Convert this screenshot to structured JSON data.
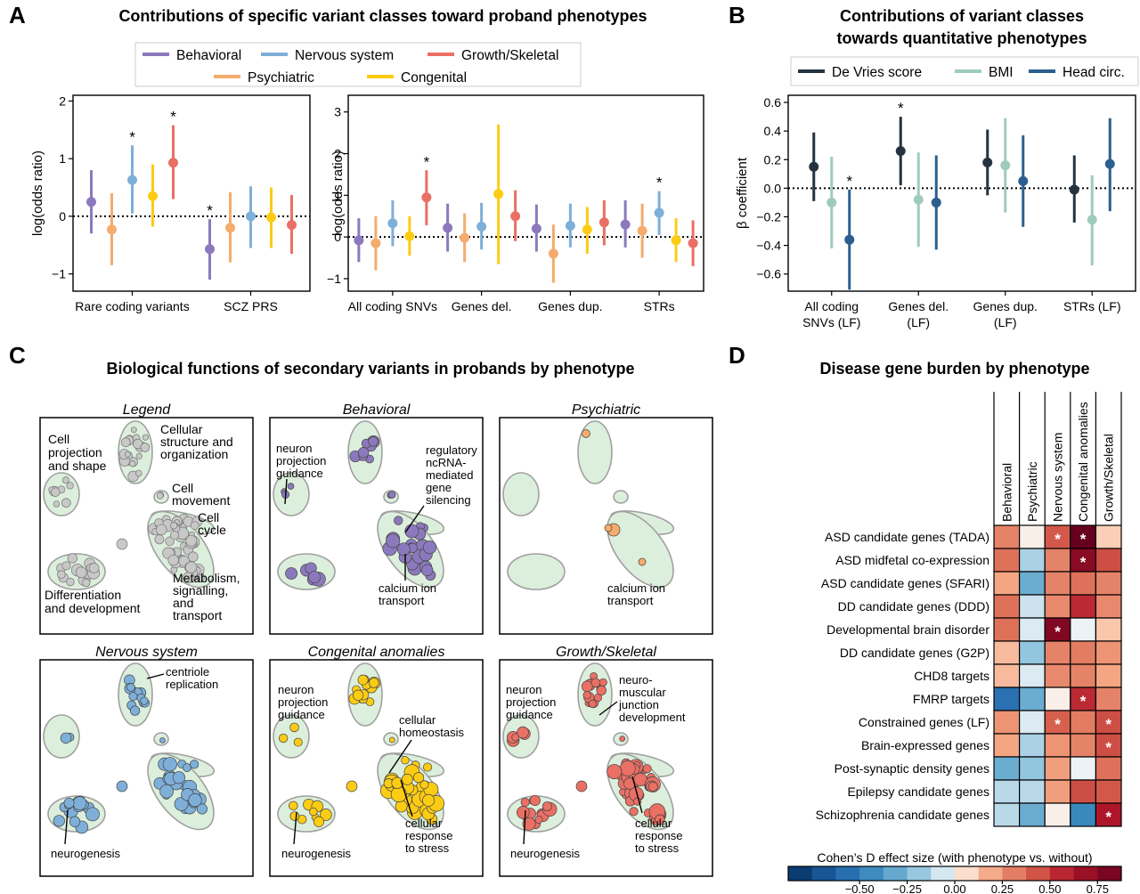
{
  "colors": {
    "behavioral": "#8c79bd",
    "nervous": "#7eafd8",
    "growth": "#ea6f64",
    "psychiatric": "#f5ac6c",
    "congenital": "#fccc14",
    "devries": "#253341",
    "bmi": "#9fcbbd",
    "headcirc": "#2c5f8f",
    "cluster_fill": "#dcefdc",
    "cluster_edge": "#a0a0a0",
    "legend_node": "#c8c8c8"
  },
  "panel_labels": [
    "A",
    "B",
    "C",
    "D"
  ],
  "panelA": {
    "title": "Contributions of specific variant classes toward proband phenotypes",
    "legend": [
      "Behavioral",
      "Nervous system",
      "Growth/Skeletal",
      "Psychiatric",
      "Congenital"
    ],
    "ylabel": "log(odds ratio)",
    "significance_mark": "*"
  },
  "panelB": {
    "title_line1": "Contributions of variant classes",
    "title_line2": "towards quantitative phenotypes",
    "legend": [
      "De Vries score",
      "BMI",
      "Head circ."
    ],
    "ylabel": "β coefficient",
    "significance_mark": "*"
  },
  "panelC": {
    "title": "Biological functions of secondary variants in probands by phenotype",
    "subpanel_titles": [
      "Legend",
      "Behavioral",
      "Psychiatric",
      "Nervous system",
      "Congenital anomalies",
      "Growth/Skeletal"
    ],
    "legend_labels": {
      "cell_projection": [
        "Cell",
        "projection",
        "and shape"
      ],
      "cellular_structure": [
        "Cellular",
        "structure and",
        "organization"
      ],
      "cell_movement": [
        "Cell",
        "movement"
      ],
      "cell_cycle": [
        "Cell",
        "cycle"
      ],
      "metabolism": [
        "Metabolism,",
        "signalling,",
        "and",
        "transport"
      ],
      "differentiation": [
        "Differentiation",
        "and development"
      ]
    },
    "annotations": {
      "neuron_projection": [
        "neuron",
        "projection",
        "guidance"
      ],
      "regulatory_ncrna": [
        "regulatory",
        "ncRNA-",
        "mediated",
        "gene",
        "silencing"
      ],
      "calcium": [
        "calcium ion",
        "transport"
      ],
      "centriole": [
        "centriole",
        "replication"
      ],
      "neurogenesis": "neurogenesis",
      "cellular_homeostasis": [
        "cellular",
        "homeostasis"
      ],
      "cellular_response": [
        "cellular",
        "response",
        "to stress"
      ],
      "neuromuscular": [
        "neuro-",
        "muscular",
        "junction",
        "development"
      ]
    }
  },
  "panelD": {
    "title": "Disease gene burden by phenotype",
    "columns": [
      "Behavioral",
      "Psychiatric",
      "Nervous system",
      "Congenital anomalies",
      "Growth/Skeletal"
    ],
    "rows": [
      "ASD candidate genes (TADA)",
      "ASD midfetal co-expression",
      "ASD candidate genes (SFARI)",
      "DD candidate genes (DDD)",
      "Developmental brain disorder",
      "DD candidate genes (G2P)",
      "CHD8 targets",
      "FMRP targets",
      "Constrained genes (LF)",
      "Brain-expressed genes",
      "Post-synaptic density genes",
      "Epilepsy candidate genes",
      "Schizophrenia candidate genes"
    ],
    "values": [
      [
        0.3,
        0.02,
        0.42,
        0.88,
        0.1
      ],
      [
        0.35,
        -0.15,
        0.3,
        0.75,
        0.45
      ],
      [
        0.2,
        -0.3,
        0.3,
        0.35,
        0.3
      ],
      [
        0.35,
        -0.08,
        0.28,
        0.55,
        0.28
      ],
      [
        0.35,
        -0.05,
        0.78,
        -0.02,
        0.12
      ],
      [
        0.15,
        -0.2,
        0.3,
        0.32,
        0.25
      ],
      [
        0.15,
        -0.05,
        0.28,
        0.3,
        0.2
      ],
      [
        -0.55,
        -0.3,
        0.02,
        0.55,
        0.3
      ],
      [
        0.25,
        -0.05,
        0.4,
        0.32,
        0.45
      ],
      [
        0.2,
        -0.15,
        0.25,
        0.3,
        0.45
      ],
      [
        -0.3,
        -0.2,
        0.22,
        -0.02,
        0.35
      ],
      [
        -0.12,
        -0.12,
        0.22,
        0.45,
        0.42
      ],
      [
        -0.12,
        -0.3,
        0.02,
        -0.45,
        0.62
      ]
    ],
    "stars": [
      [
        0,
        2
      ],
      [
        0,
        3
      ],
      [
        1,
        3
      ],
      [
        4,
        2
      ],
      [
        7,
        3
      ],
      [
        8,
        2
      ],
      [
        8,
        4
      ],
      [
        9,
        4
      ],
      [
        12,
        4
      ]
    ],
    "colorbar_label": "Cohen’s D effect size (with phenotype vs. without)",
    "colorbar_ticks": [
      "−0.50",
      "−0.25",
      "0.00",
      "0.25",
      "0.50",
      "0.75"
    ],
    "colorbar_tick_values": [
      -0.5,
      -0.25,
      0,
      0.25,
      0.5,
      0.75
    ],
    "colorbar_range": [
      -0.875,
      0.875
    ]
  },
  "chart_data": [
    {
      "type": "scatter",
      "subtype": "point-range",
      "panel": "A-left",
      "categories": [
        "Rare coding variants",
        "SCZ PRS"
      ],
      "ylabel": "log(odds ratio)",
      "ylim": [
        -1.3,
        2.1
      ],
      "yticks": [
        -1,
        0,
        1,
        2
      ],
      "reference_line": 0,
      "series": [
        {
          "name": "Behavioral",
          "values": [
            0.25,
            -0.57
          ],
          "lo": [
            -0.3,
            -1.1
          ],
          "hi": [
            0.8,
            -0.05
          ],
          "sig": [
            false,
            true
          ]
        },
        {
          "name": "Psychiatric",
          "values": [
            -0.23,
            -0.2
          ],
          "lo": [
            -0.85,
            -0.8
          ],
          "hi": [
            0.4,
            0.42
          ],
          "sig": [
            false,
            false
          ]
        },
        {
          "name": "Nervous system",
          "values": [
            0.63,
            0.0
          ],
          "lo": [
            0.05,
            -0.55
          ],
          "hi": [
            1.23,
            0.52
          ],
          "sig": [
            true,
            false
          ]
        },
        {
          "name": "Congenital",
          "values": [
            0.35,
            -0.02
          ],
          "lo": [
            -0.18,
            -0.55
          ],
          "hi": [
            0.9,
            0.5
          ],
          "sig": [
            false,
            false
          ]
        },
        {
          "name": "Growth/Skeletal",
          "values": [
            0.93,
            -0.15
          ],
          "lo": [
            0.3,
            -0.65
          ],
          "hi": [
            1.58,
            0.37
          ],
          "sig": [
            true,
            false
          ]
        }
      ]
    },
    {
      "type": "scatter",
      "subtype": "point-range",
      "panel": "A-right",
      "categories": [
        "All coding SNVs",
        "Genes del.",
        "Genes dup.",
        "STRs"
      ],
      "ylabel": "log(odds ratio)",
      "ylim": [
        -1.3,
        3.4
      ],
      "yticks": [
        -1,
        0,
        1,
        2,
        3
      ],
      "reference_line": 0,
      "series": [
        {
          "name": "Behavioral",
          "values": [
            -0.08,
            0.22,
            0.2,
            0.3
          ],
          "lo": [
            -0.6,
            -0.35,
            -0.35,
            -0.25
          ],
          "hi": [
            0.45,
            0.8,
            0.78,
            0.88
          ],
          "sig": [
            false,
            false,
            false,
            false
          ]
        },
        {
          "name": "Psychiatric",
          "values": [
            -0.15,
            -0.02,
            -0.4,
            0.15
          ],
          "lo": [
            -0.8,
            -0.6,
            -1.1,
            -0.5
          ],
          "hi": [
            0.5,
            0.57,
            0.3,
            0.8
          ],
          "sig": [
            false,
            false,
            false,
            false
          ]
        },
        {
          "name": "Nervous system",
          "values": [
            0.33,
            0.25,
            0.27,
            0.58
          ],
          "lo": [
            -0.22,
            -0.3,
            -0.25,
            0.05
          ],
          "hi": [
            0.88,
            0.82,
            0.8,
            1.1
          ],
          "sig": [
            false,
            false,
            false,
            true
          ]
        },
        {
          "name": "Congenital",
          "values": [
            0.02,
            1.03,
            0.18,
            -0.08
          ],
          "lo": [
            -0.45,
            -0.65,
            -0.4,
            -0.6
          ],
          "hi": [
            0.5,
            2.7,
            0.72,
            0.45
          ],
          "sig": [
            false,
            false,
            false,
            false
          ]
        },
        {
          "name": "Growth/Skeletal",
          "values": [
            0.95,
            0.5,
            0.35,
            -0.15
          ],
          "lo": [
            0.28,
            -0.1,
            -0.2,
            -0.7
          ],
          "hi": [
            1.6,
            1.12,
            0.88,
            0.4
          ],
          "sig": [
            true,
            false,
            false,
            false
          ]
        }
      ]
    },
    {
      "type": "scatter",
      "subtype": "point-range",
      "panel": "B",
      "categories": [
        "All coding SNVs (LF)",
        "Genes del. (LF)",
        "Genes dup. (LF)",
        "STRs (LF)"
      ],
      "ylabel": "β coefficient",
      "ylim": [
        -0.72,
        0.65
      ],
      "yticks": [
        -0.6,
        -0.4,
        -0.2,
        0.0,
        0.2,
        0.4,
        0.6
      ],
      "reference_line": 0,
      "series": [
        {
          "name": "De Vries score",
          "values": [
            0.15,
            0.26,
            0.18,
            -0.01
          ],
          "lo": [
            -0.09,
            0.02,
            -0.05,
            -0.24
          ],
          "hi": [
            0.39,
            0.5,
            0.41,
            0.23
          ],
          "sig": [
            false,
            true,
            false,
            false
          ]
        },
        {
          "name": "BMI",
          "values": [
            -0.1,
            -0.08,
            0.16,
            -0.22
          ],
          "lo": [
            -0.42,
            -0.41,
            -0.17,
            -0.54
          ],
          "hi": [
            0.22,
            0.25,
            0.49,
            0.09
          ],
          "sig": [
            false,
            false,
            false,
            false
          ]
        },
        {
          "name": "Head circ.",
          "values": [
            -0.36,
            -0.1,
            0.05,
            0.17
          ],
          "lo": [
            -0.71,
            -0.43,
            -0.27,
            -0.16
          ],
          "hi": [
            -0.01,
            0.23,
            0.37,
            0.49
          ],
          "sig": [
            true,
            false,
            false,
            false
          ]
        }
      ]
    },
    {
      "type": "heatmap",
      "panel": "D",
      "source": "panelD"
    }
  ]
}
